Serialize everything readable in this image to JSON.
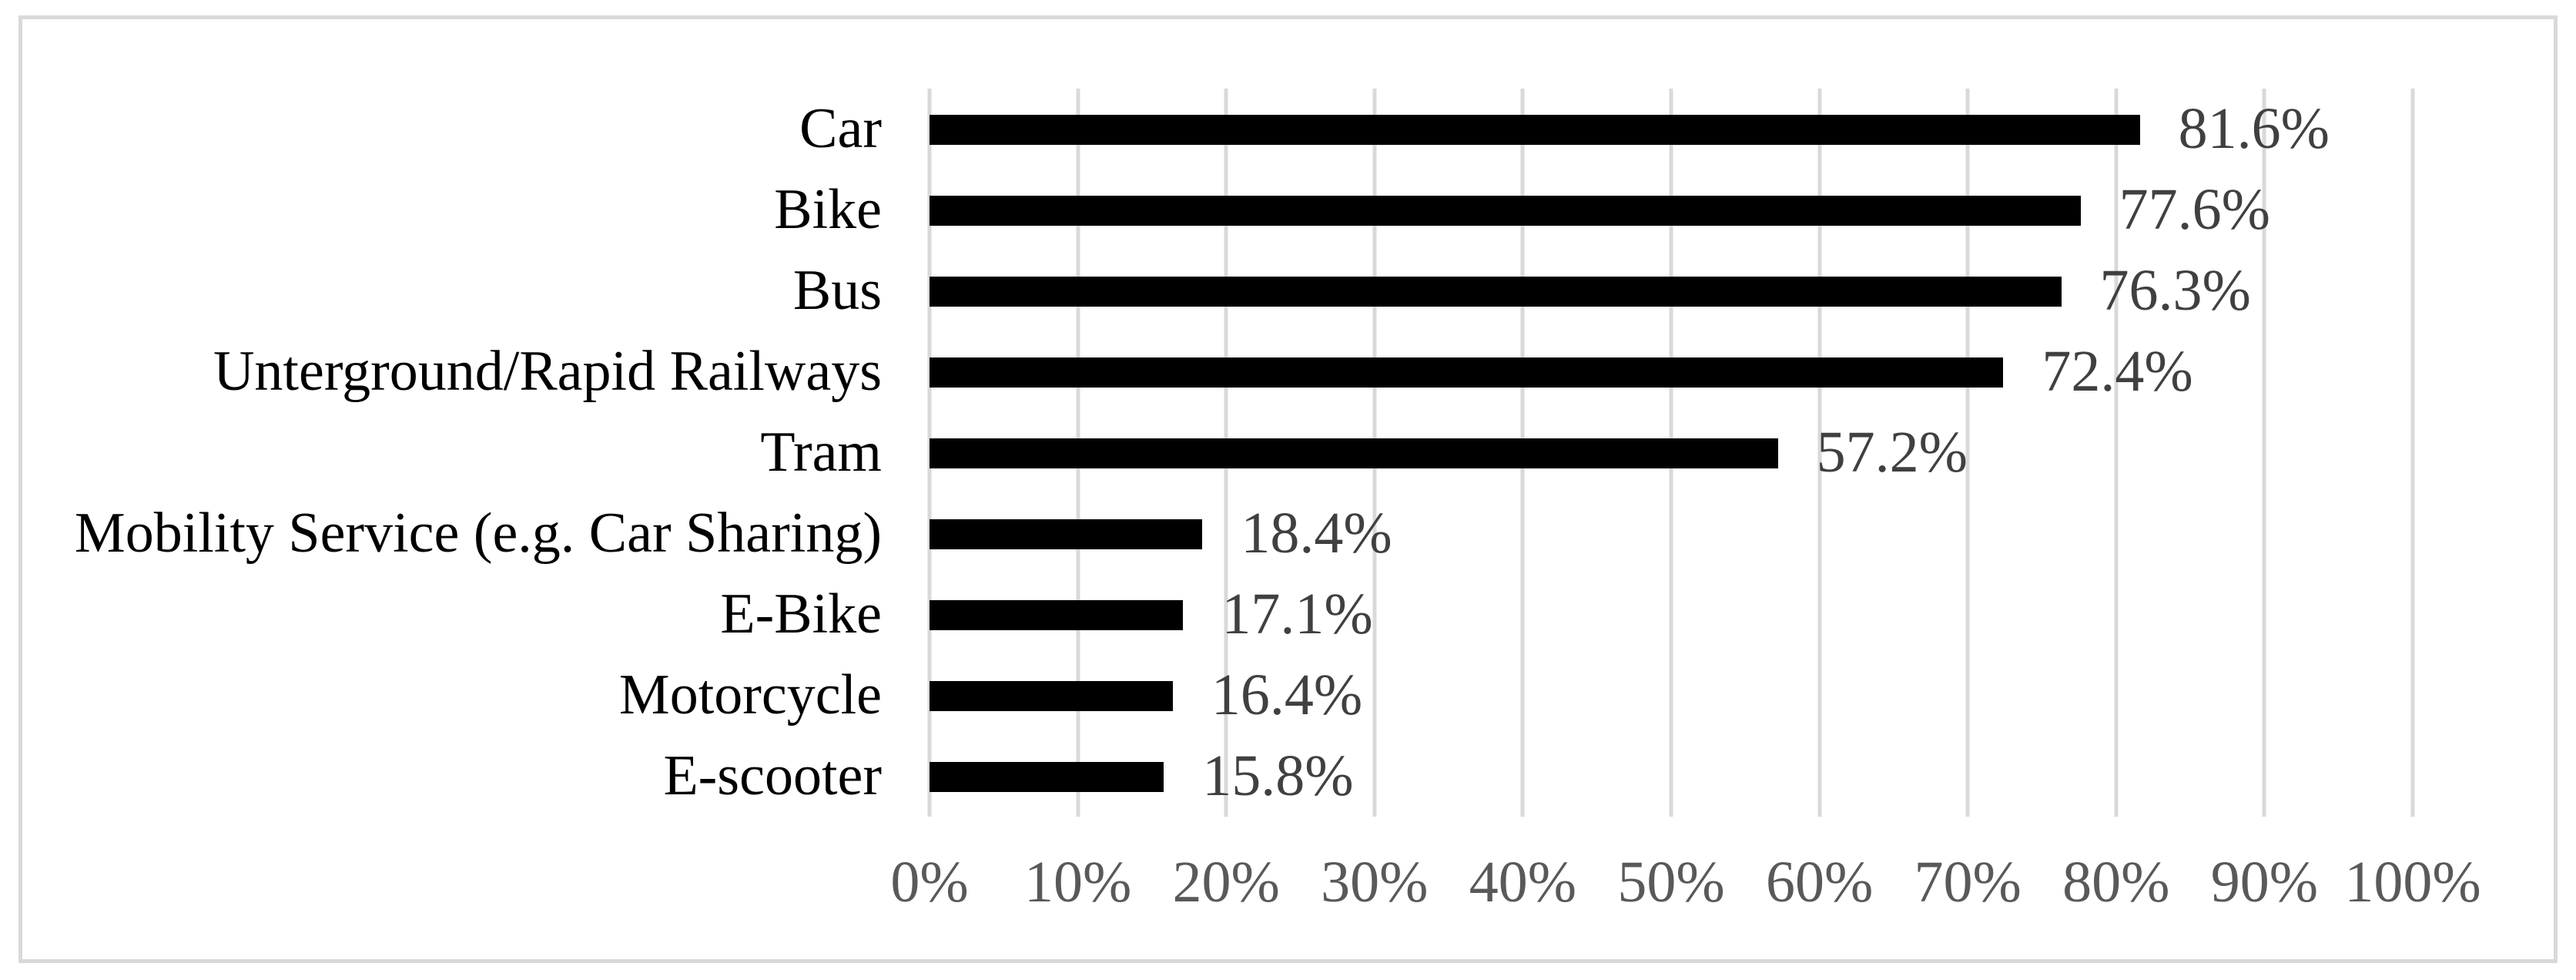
{
  "chart_data": {
    "type": "bar",
    "orientation": "horizontal",
    "categories": [
      "Car",
      "Bike",
      "Bus",
      "Unterground/Rapid Railways",
      "Tram",
      "Mobility Service (e.g. Car Sharing)",
      "E-Bike",
      "Motorcycle",
      "E-scooter"
    ],
    "values": [
      81.6,
      77.6,
      76.3,
      72.4,
      57.2,
      18.4,
      17.1,
      16.4,
      15.8
    ],
    "value_labels": [
      "81.6%",
      "77.6%",
      "76.3%",
      "72.4%",
      "57.2%",
      "18.4%",
      "17.1%",
      "16.4%",
      "15.8%"
    ],
    "x_ticks": [
      "0%",
      "10%",
      "20%",
      "30%",
      "40%",
      "50%",
      "60%",
      "70%",
      "80%",
      "90%",
      "100%"
    ],
    "xlim": [
      0,
      100
    ],
    "grid": "vertical",
    "legend": "none",
    "colors": {
      "bar": "#000000",
      "gridline": "#d9d9d9",
      "frame_border": "#d9d9d9",
      "category_label": "#000000",
      "value_label": "#404040",
      "axis_tick_label": "#595959",
      "background": "#ffffff"
    }
  }
}
